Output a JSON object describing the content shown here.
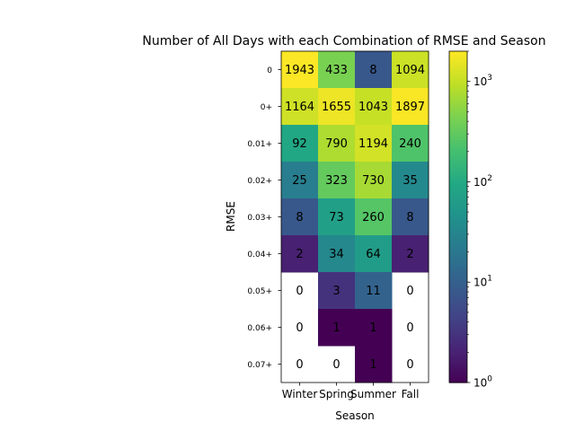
{
  "chart_data": {
    "type": "heatmap",
    "title": "Number of All Days with each Combination of RMSE and Season",
    "xlabel": "Season",
    "ylabel": "RMSE",
    "x_categories": [
      "Winter",
      "Spring",
      "Summer",
      "Fall"
    ],
    "y_categories": [
      "0",
      "0+",
      "0.01+",
      "0.02+",
      "0.03+",
      "0.04+",
      "0.05+",
      "0.06+",
      "0.07+"
    ],
    "values": [
      [
        1943,
        433,
        8,
        1094
      ],
      [
        1164,
        1655,
        1043,
        1897
      ],
      [
        92,
        790,
        1194,
        240
      ],
      [
        25,
        323,
        730,
        35
      ],
      [
        8,
        73,
        260,
        8
      ],
      [
        2,
        34,
        64,
        2
      ],
      [
        0,
        3,
        11,
        0
      ],
      [
        0,
        1,
        1,
        0
      ],
      [
        0,
        0,
        1,
        0
      ]
    ],
    "colormap": "viridis",
    "color_scale": "log",
    "zero_cells": "blank",
    "colorbar": {
      "range": [
        1,
        2000
      ],
      "ticks": [
        {
          "value": 1,
          "label": "10^0"
        },
        {
          "value": 10,
          "label": "10^1"
        },
        {
          "value": 100,
          "label": "10^2"
        },
        {
          "value": 1000,
          "label": "10^3"
        }
      ]
    },
    "grid": false
  }
}
